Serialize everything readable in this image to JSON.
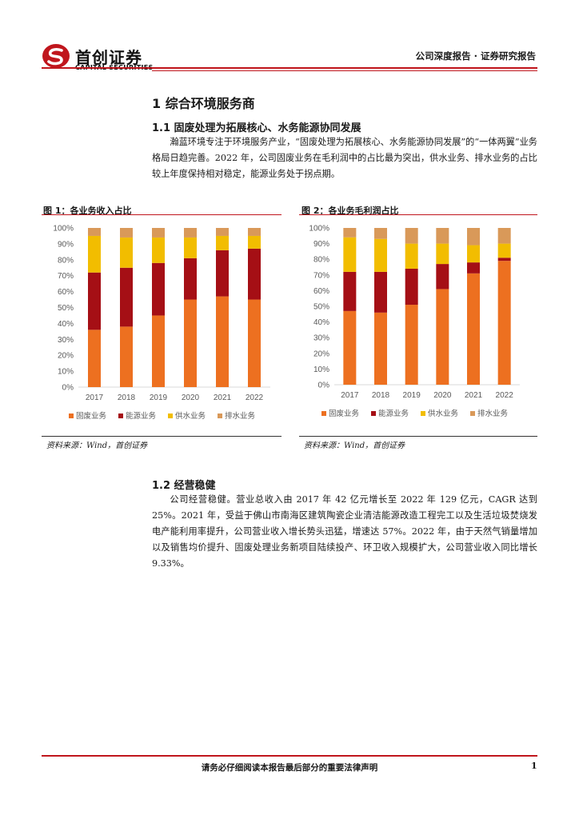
{
  "header": {
    "logo_cn": "首创证券",
    "logo_en": "CAPITAL SECURITIES",
    "report_type": "公司深度报告 · 证券研究报告"
  },
  "section1": {
    "heading": "1  综合环境服务商",
    "sub1": {
      "heading": "1.1  固废处理为拓展核心、水务能源协同发展",
      "text": "瀚蓝环境专注于环境服务产业，“固废处理为拓展核心、水务能源协同发展”的“一体两翼”业务格局日趋完善。2022 年，公司固废业务在毛利润中的占比最为突出，供水业务、排水业务的占比较上年度保持相对稳定，能源业务处于拐点期。"
    },
    "sub2": {
      "heading": "1.2  经营稳健",
      "text": "公司经营稳健。营业总收入由 2017 年 42 亿元增长至 2022 年 129 亿元，CAGR 达到 25%。2021 年，受益于佛山市南海区建筑陶瓷企业清洁能源改造工程完工以及生活垃圾焚烧发电产能利用率提升，公司营业收入增长势头迅猛，增速达 57%。2022 年，由于天然气销量增加以及销售均价提升、固废处理业务新项目陆续投产、环卫收入规模扩大，公司营业收入同比增长 9.33%。"
    }
  },
  "figures": [
    {
      "title": "图 1：各业务收入占比",
      "source": "资料来源：Wind，首创证券"
    },
    {
      "title": "图 2：各业务毛利润占比",
      "source": "资料来源：Wind，首创证券"
    }
  ],
  "chart_data": [
    {
      "type": "bar",
      "stacked": true,
      "categories": [
        "2017",
        "2018",
        "2019",
        "2020",
        "2021",
        "2022"
      ],
      "y_ticks": [
        "0%",
        "10%",
        "20%",
        "30%",
        "40%",
        "50%",
        "60%",
        "70%",
        "80%",
        "90%",
        "100%"
      ],
      "ylim": [
        0,
        100
      ],
      "legend_position": "bottom",
      "series": [
        {
          "name": "固废业务",
          "color": "#ed7020",
          "values": [
            36,
            38,
            45,
            55,
            57,
            55
          ]
        },
        {
          "name": "能源业务",
          "color": "#a50f15",
          "values": [
            36,
            37,
            33,
            26,
            29,
            32
          ]
        },
        {
          "name": "供水业务",
          "color": "#f2bd00",
          "values": [
            23,
            19,
            16,
            13,
            9,
            8
          ]
        },
        {
          "name": "排水业务",
          "color": "#d99959",
          "values": [
            5,
            6,
            6,
            6,
            5,
            5
          ]
        }
      ]
    },
    {
      "type": "bar",
      "stacked": true,
      "categories": [
        "2017",
        "2018",
        "2019",
        "2020",
        "2021",
        "2022"
      ],
      "y_ticks": [
        "0%",
        "10%",
        "20%",
        "30%",
        "40%",
        "50%",
        "60%",
        "70%",
        "80%",
        "90%",
        "100%"
      ],
      "ylim": [
        0,
        100
      ],
      "legend_position": "bottom",
      "series": [
        {
          "name": "固废业务",
          "color": "#ed7020",
          "values": [
            47,
            46,
            51,
            61,
            71,
            79
          ]
        },
        {
          "name": "能源业务",
          "color": "#a50f15",
          "values": [
            25,
            26,
            23,
            16,
            7,
            2
          ]
        },
        {
          "name": "供水业务",
          "color": "#f2bd00",
          "values": [
            22,
            21,
            16,
            13,
            11,
            9
          ]
        },
        {
          "name": "排水业务",
          "color": "#d99959",
          "values": [
            6,
            7,
            10,
            10,
            11,
            10
          ]
        }
      ]
    }
  ],
  "footer": {
    "disclaimer": "请务必仔细阅读本报告最后部分的重要法律声明",
    "page": "1"
  }
}
